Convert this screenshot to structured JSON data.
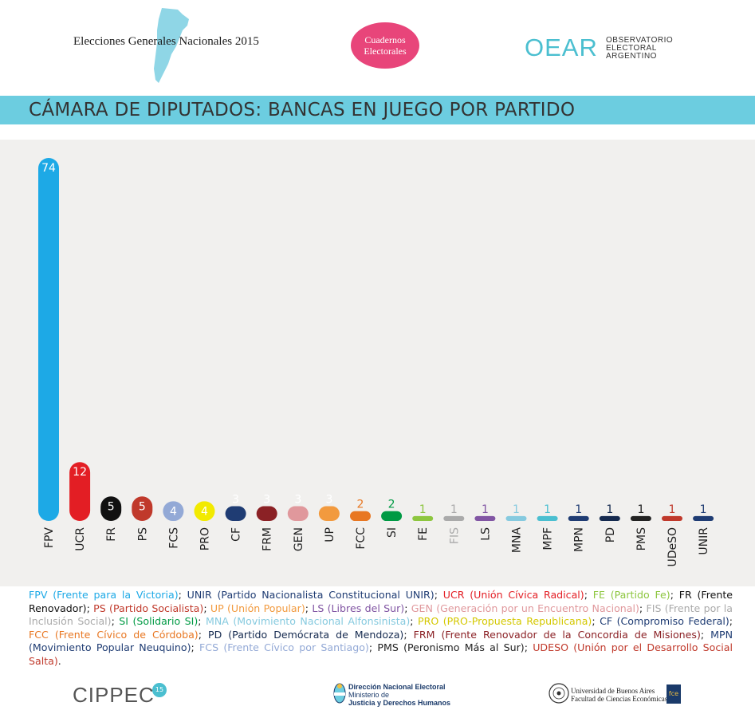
{
  "header": {
    "title": "Elecciones Generales Nacionales 2015",
    "badge_line1": "Cuadernos",
    "badge_line2": "Electorales",
    "org_logo": "OEAR",
    "org_line1": "OBSERVATORIO",
    "org_line2": "ELECTORAL",
    "org_line3": "ARGENTINO"
  },
  "chart_data": {
    "type": "bar",
    "title": "CÁMARA DE DIPUTADOS: BANCAS EN JUEGO POR PARTIDO",
    "xlabel": "",
    "ylabel": "",
    "ylim": [
      0,
      74
    ],
    "categories": [
      "FPV",
      "UCR",
      "FR",
      "PS",
      "FCS",
      "PRO",
      "CF",
      "FRM",
      "GEN",
      "UP",
      "FCC",
      "SI",
      "FE",
      "FIS",
      "LS",
      "MNA",
      "MPF",
      "MPN",
      "PD",
      "PMS",
      "UDeSO",
      "UNIR"
    ],
    "values": [
      74,
      12,
      5,
      5,
      4,
      4,
      3,
      3,
      3,
      3,
      2,
      2,
      1,
      1,
      1,
      1,
      1,
      1,
      1,
      1,
      1,
      1
    ],
    "colors": [
      "#1da9e6",
      "#e31e24",
      "#111111",
      "#c0392b",
      "#93a9d6",
      "#f2ea00",
      "#1f3c73",
      "#8b2125",
      "#e0989c",
      "#f29a3e",
      "#e87722",
      "#009a44",
      "#8dc63f",
      "#aaaaaa",
      "#8155a3",
      "#86cadf",
      "#4bbfd0",
      "#1f3c73",
      "#152a4f",
      "#222222",
      "#c0392b",
      "#1f3c73"
    ],
    "label_colors": [
      "#ffffff",
      "#ffffff",
      "#ffffff",
      "#ffffff",
      "#ffffff",
      "#ffffff",
      "#ffffff",
      "#ffffff",
      "#ffffff",
      "#ffffff",
      "#e87722",
      "#009a44",
      "#8dc63f",
      "#aaaaaa",
      "#8155a3",
      "#86cadf",
      "#4bbfd0",
      "#1f3c73",
      "#152a4f",
      "#222222",
      "#c0392b",
      "#1f3c73"
    ],
    "tick_colors": [
      "#222222",
      "#222222",
      "#222222",
      "#222222",
      "#222222",
      "#222222",
      "#222222",
      "#222222",
      "#222222",
      "#222222",
      "#222222",
      "#222222",
      "#222222",
      "#aaaaaa",
      "#222222",
      "#222222",
      "#222222",
      "#222222",
      "#222222",
      "#222222",
      "#222222",
      "#222222"
    ]
  },
  "legend": [
    {
      "text": "FPV (Frente para la Victoria)",
      "color": "#1da9e6"
    },
    {
      "text": "; ",
      "color": "#222222"
    },
    {
      "text": "UNIR (Partido Nacionalista Constitucional UNIR)",
      "color": "#1f3c73"
    },
    {
      "text": "; ",
      "color": "#222222"
    },
    {
      "text": "UCR (Unión Cívica Radical)",
      "color": "#e31e24"
    },
    {
      "text": "; ",
      "color": "#222222"
    },
    {
      "text": "FE (Partido Fe)",
      "color": "#8dc63f"
    },
    {
      "text": "; ",
      "color": "#222222"
    },
    {
      "text": "FR (Frente Renovador)",
      "color": "#111111"
    },
    {
      "text": "; ",
      "color": "#222222"
    },
    {
      "text": "PS (Partido Socialista)",
      "color": "#c0392b"
    },
    {
      "text": "; ",
      "color": "#222222"
    },
    {
      "text": "UP (Unión Popular)",
      "color": "#f29a3e"
    },
    {
      "text": "; ",
      "color": "#222222"
    },
    {
      "text": "LS (Libres del Sur)",
      "color": "#8155a3"
    },
    {
      "text": "; ",
      "color": "#222222"
    },
    {
      "text": "GEN (Generación por un Encuentro Nacional)",
      "color": "#e0989c"
    },
    {
      "text": "; ",
      "color": "#222222"
    },
    {
      "text": "FIS (Frente por la Inclusión Social)",
      "color": "#aaaaaa"
    },
    {
      "text": "; ",
      "color": "#222222"
    },
    {
      "text": "SI (Solidario SI)",
      "color": "#009a44"
    },
    {
      "text": "; ",
      "color": "#222222"
    },
    {
      "text": "MNA (Movimiento Nacional Alfonsinista)",
      "color": "#86cadf"
    },
    {
      "text": "; ",
      "color": "#222222"
    },
    {
      "text": "PRO (PRO-Propuesta Republicana)",
      "color": "#d4c800"
    },
    {
      "text": "; ",
      "color": "#222222"
    },
    {
      "text": "CF (Compromiso Federal)",
      "color": "#1f3c73"
    },
    {
      "text": "; ",
      "color": "#222222"
    },
    {
      "text": "FCC (Frente Cívico de Córdoba)",
      "color": "#e87722"
    },
    {
      "text": "; ",
      "color": "#222222"
    },
    {
      "text": "PD (Partido Demócrata de Mendoza)",
      "color": "#152a4f"
    },
    {
      "text": "; ",
      "color": "#222222"
    },
    {
      "text": "FRM (Frente Renovador de la Concordia de Misiones)",
      "color": "#8b2125"
    },
    {
      "text": "; ",
      "color": "#222222"
    },
    {
      "text": "MPN (Movimiento Popular Neuquino)",
      "color": "#1f3c73"
    },
    {
      "text": "; ",
      "color": "#222222"
    },
    {
      "text": "FCS (Frente Cívico por Santiago)",
      "color": "#93a9d6"
    },
    {
      "text": "; ",
      "color": "#222222"
    },
    {
      "text": "PMS (Peronismo Más al Sur)",
      "color": "#222222"
    },
    {
      "text": "; ",
      "color": "#222222"
    },
    {
      "text": "UDESO (Unión por el Desarrollo Social Salta)",
      "color": "#c0392b"
    },
    {
      "text": ".",
      "color": "#222222"
    }
  ],
  "footer": {
    "cippec": "CIPPEC",
    "cippec_badge": "15",
    "dne_line1": "Dirección Nacional Electoral",
    "dne_line2": "Ministerio de",
    "dne_line3": "Justicia y Derechos Humanos",
    "uba_line1": "Universidad de Buenos Aires",
    "uba_line2": "Facultad de Ciencias Económicas",
    "fce": "fce"
  }
}
